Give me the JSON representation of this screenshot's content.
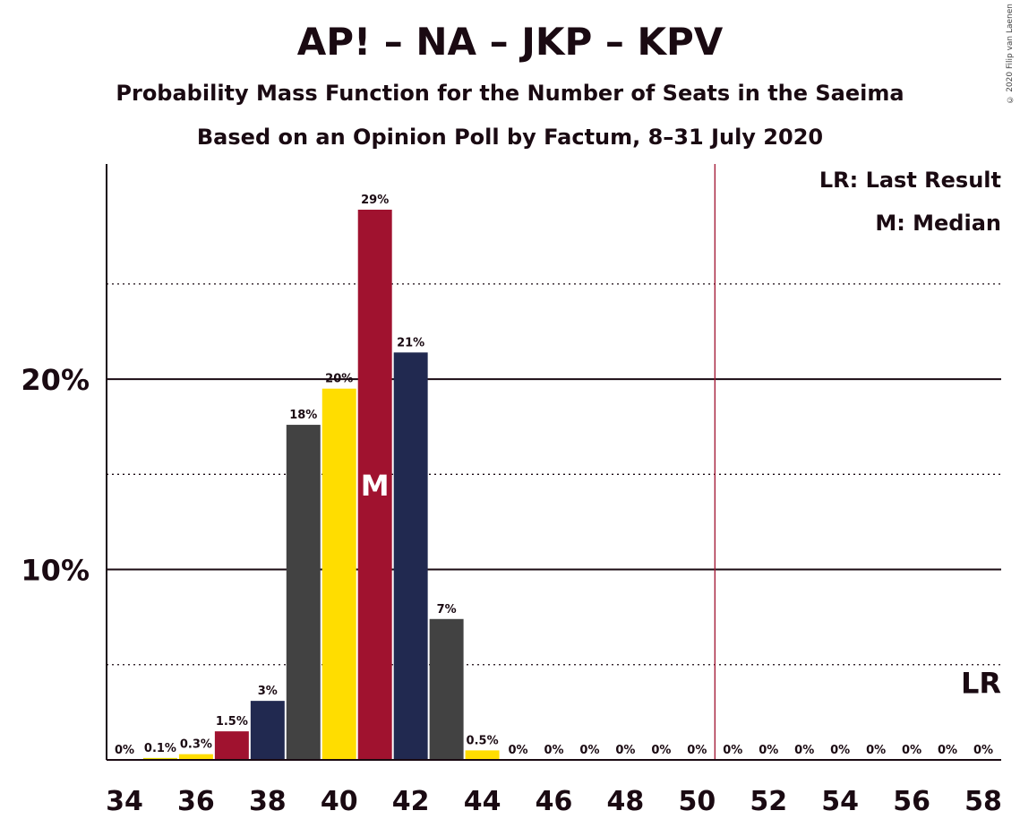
{
  "header": {
    "title": "AP! – NA – JKP – KPV",
    "subtitle1": "Probability Mass Function for the Number of Seats in the Saeima",
    "subtitle2": "Based on an Opinion Poll by Factum, 8–31 July 2020",
    "copyright": "© 2020 Filip van Laenen"
  },
  "legend": {
    "lr": "LR: Last Result",
    "median": "M: Median",
    "lr_marker": "LR",
    "median_marker": "M"
  },
  "chart_data": {
    "type": "bar",
    "x": [
      34,
      35,
      36,
      37,
      38,
      39,
      40,
      41,
      42,
      43,
      44,
      45,
      46,
      47,
      48,
      49,
      50,
      51,
      52,
      53,
      54,
      55,
      56,
      57,
      58
    ],
    "values": [
      0,
      0.1,
      0.3,
      1.5,
      3.1,
      17.6,
      19.5,
      28.9,
      21.4,
      7.4,
      0.5,
      0,
      0,
      0,
      0,
      0,
      0,
      0,
      0,
      0,
      0,
      0,
      0,
      0,
      0
    ],
    "data_labels": [
      "0%",
      "0.1%",
      "0.3%",
      "1.5%",
      "3%",
      "18%",
      "20%",
      "29%",
      "21%",
      "7%",
      "0.5%",
      "0%",
      "0%",
      "0%",
      "0%",
      "0%",
      "0%",
      "0%",
      "0%",
      "0%",
      "0%",
      "0%",
      "0%",
      "0%",
      "0%"
    ],
    "bar_colors": [
      "#E4D902",
      "#E4D902",
      "#FFDD00",
      "#A0122F",
      "#212950",
      "#424242",
      "#FFDD00",
      "#A0122F",
      "#212950",
      "#424242",
      "#FFDD00",
      "#A0122F",
      "#212950",
      "#424242",
      "#FFDD00",
      "#A0122F",
      "#212950",
      "#424242",
      "#FFDD00",
      "#A0122F",
      "#212950",
      "#424242",
      "#FFDD00",
      "#A0122F",
      "#212950"
    ],
    "x_tick_labels": [
      "34",
      "36",
      "38",
      "40",
      "42",
      "44",
      "46",
      "48",
      "50",
      "52",
      "54",
      "56",
      "58"
    ],
    "y_tick_labels": [
      "10%",
      "20%"
    ],
    "y_ticks": [
      10,
      20
    ],
    "y_minor_ticks": [
      5,
      15,
      25
    ],
    "ylim": [
      0,
      31.3
    ],
    "xlim": [
      33.5,
      58.5
    ],
    "median_seat": 41,
    "last_result_seat": 50.5,
    "grid": true
  }
}
